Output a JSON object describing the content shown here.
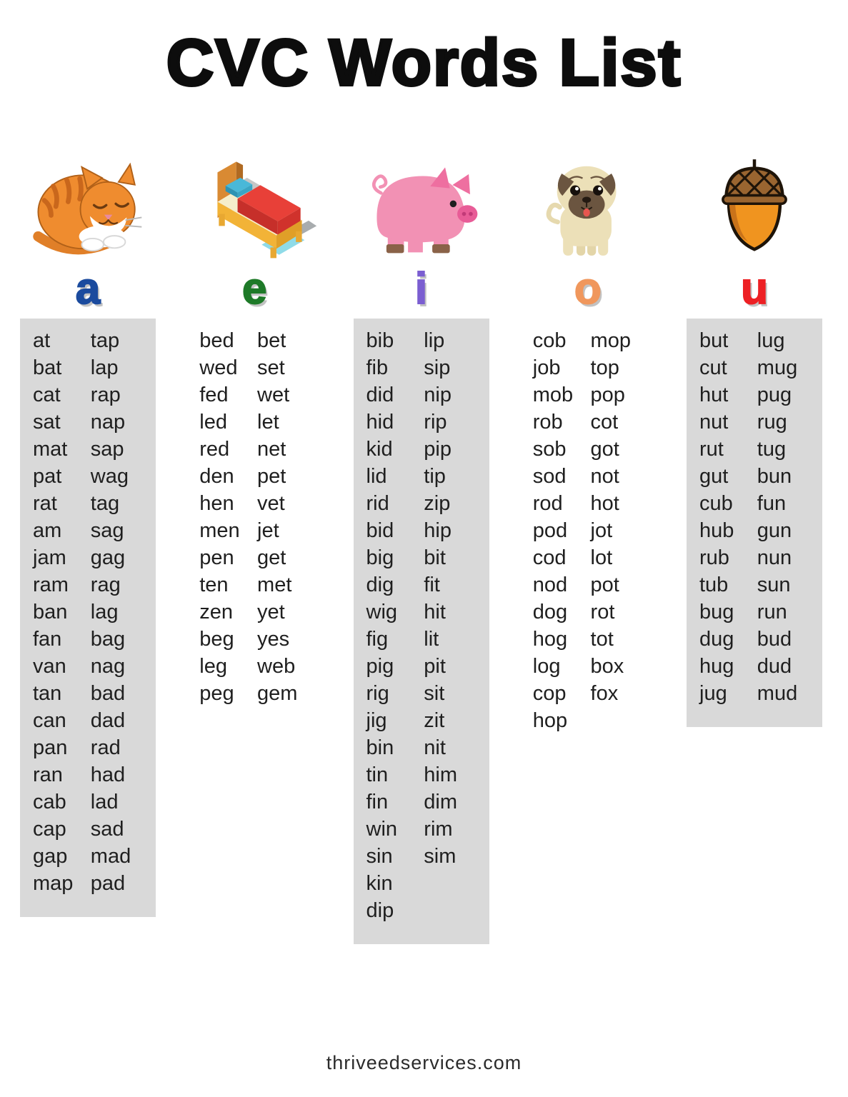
{
  "page": {
    "title": "CVC Words List",
    "footer": "thriveedservices.com"
  },
  "colors": {
    "shaded_box_bg": "#d9d9d9",
    "vowel_a": "#1b4b9e",
    "vowel_e": "#1e7a28",
    "vowel_i": "#7b5ed1",
    "vowel_o": "#f0975c",
    "vowel_u": "#ed2024"
  },
  "columns": [
    {
      "vowel": "a",
      "image": "cat",
      "shaded": true,
      "words_left": [
        "at",
        "bat",
        "cat",
        "sat",
        "mat",
        "pat",
        "rat",
        "am",
        "jam",
        "ram",
        "ban",
        "fan",
        "van",
        "tan",
        "can",
        "pan",
        "ran",
        "cab",
        "cap",
        "gap",
        "map"
      ],
      "words_right": [
        "tap",
        "lap",
        "rap",
        "nap",
        "sap",
        "wag",
        "tag",
        "sag",
        "gag",
        "rag",
        "lag",
        "bag",
        "nag",
        "bad",
        "dad",
        "rad",
        "had",
        "lad",
        "sad",
        "mad",
        "pad"
      ]
    },
    {
      "vowel": "e",
      "image": "bed",
      "shaded": false,
      "words_left": [
        "bed",
        "wed",
        "fed",
        "led",
        "red",
        "den",
        "hen",
        "men",
        "pen",
        "ten",
        "zen",
        "beg",
        "leg",
        "peg"
      ],
      "words_right": [
        "bet",
        "set",
        "wet",
        "let",
        "net",
        "pet",
        "vet",
        "jet",
        "get",
        "met",
        "yet",
        "yes",
        "web",
        "gem"
      ]
    },
    {
      "vowel": "i",
      "image": "pig",
      "shaded": true,
      "words_left": [
        "bib",
        "fib",
        "did",
        "hid",
        "kid",
        "lid",
        "rid",
        "bid",
        "big",
        "dig",
        "wig",
        "fig",
        "pig",
        "rig",
        "jig",
        "bin",
        "tin",
        "fin",
        "win",
        "sin",
        "kin",
        "dip"
      ],
      "words_right": [
        "lip",
        "sip",
        "nip",
        "rip",
        "pip",
        "tip",
        "zip",
        "hip",
        "bit",
        "fit",
        "hit",
        "lit",
        "pit",
        "sit",
        "zit",
        "nit",
        "him",
        "dim",
        "rim",
        "sim"
      ]
    },
    {
      "vowel": "o",
      "image": "pug-dog",
      "shaded": false,
      "words_left": [
        "cob",
        "job",
        "mob",
        "rob",
        "sob",
        "sod",
        "rod",
        "pod",
        "cod",
        "nod",
        "dog",
        "hog",
        "log",
        "cop",
        "hop"
      ],
      "words_right": [
        "mop",
        "top",
        "pop",
        "cot",
        "got",
        "not",
        "hot",
        "jot",
        "lot",
        "pot",
        "rot",
        "tot",
        "box",
        "fox"
      ]
    },
    {
      "vowel": "u",
      "image": "acorn",
      "shaded": true,
      "words_left": [
        "but",
        "cut",
        "hut",
        "nut",
        "rut",
        "gut",
        "cub",
        "hub",
        "rub",
        "tub",
        "bug",
        "dug",
        "hug",
        "jug"
      ],
      "words_right": [
        "lug",
        "mug",
        "pug",
        "rug",
        "tug",
        "bun",
        "fun",
        "gun",
        "nun",
        "sun",
        "run",
        "bud",
        "dud",
        "mud"
      ]
    }
  ]
}
